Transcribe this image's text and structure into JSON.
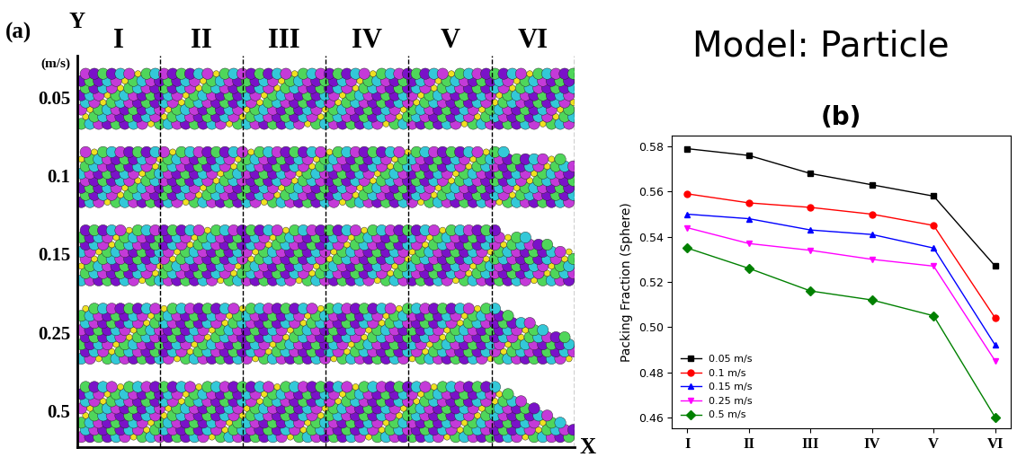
{
  "figure_text": "Model: Particle",
  "panel_a": {
    "label": "(a)",
    "x_axis": "X",
    "y_axis": "Y",
    "unit": "(m/s)",
    "columns": [
      "I",
      "II",
      "III",
      "IV",
      "V",
      "VI"
    ],
    "rows": [
      "0.05",
      "0.1",
      "0.15",
      "0.25",
      "0.5"
    ]
  },
  "chart_data": {
    "type": "line",
    "title": "(b)",
    "y_label": "Packing Fraction (Sphere)",
    "categories": [
      "I",
      "II",
      "III",
      "IV",
      "V",
      "VI"
    ],
    "ylim": [
      0.455,
      0.585
    ],
    "yticks": [
      0.46,
      0.48,
      {
        "value": 0.5,
        "label": "0.50"
      },
      0.52,
      0.54,
      0.56,
      0.58
    ],
    "legend": "lower left",
    "series": [
      {
        "name": "0.05 m/s",
        "color": "#000000",
        "marker": "s",
        "values": [
          0.579,
          0.576,
          0.568,
          0.563,
          0.558,
          0.527
        ]
      },
      {
        "name": "0.1 m/s",
        "color": "#ff0000",
        "marker": "o",
        "values": [
          0.559,
          0.555,
          0.553,
          0.55,
          0.545,
          0.504
        ]
      },
      {
        "name": "0.15 m/s",
        "color": "#0000ff",
        "marker": "^",
        "values": [
          0.55,
          0.548,
          0.543,
          0.541,
          0.535,
          0.492
        ]
      },
      {
        "name": "0.25 m/s",
        "color": "#ff00ff",
        "marker": "v",
        "values": [
          0.544,
          0.537,
          0.534,
          0.53,
          0.527,
          0.485
        ]
      },
      {
        "name": "0.5 m/s",
        "color": "#008000",
        "marker": "D",
        "values": [
          0.535,
          0.526,
          0.516,
          0.512,
          0.505,
          0.46
        ]
      }
    ]
  }
}
